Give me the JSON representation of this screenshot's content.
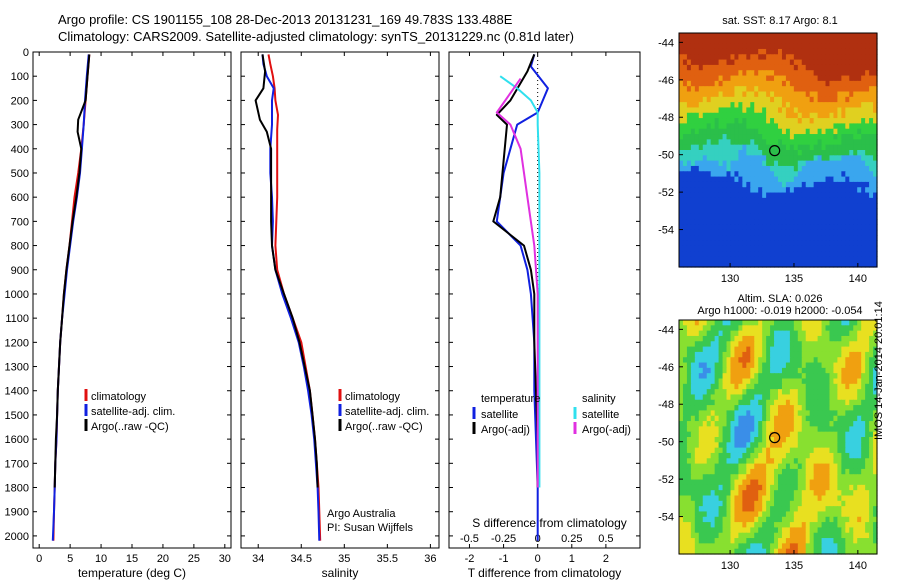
{
  "header": {
    "line1": "Argo profile: CS 1901155_108 28-Dec-2013 20131231_169 49.783S 133.488E",
    "line2": "Climatology: CARS2009. Satellite-adjusted climatology: synTS_20131229.nc (0.81d later)"
  },
  "colors": {
    "climatology": "#e01010",
    "satellite": "#1020e0",
    "argo": "#000000",
    "sat_salinity": "#30e0ee",
    "argo_salinity": "#e030e0"
  },
  "chart_data": [
    {
      "type": "line",
      "panel": "temperature",
      "xlabel": "temperature (deg C)",
      "ylabel": "",
      "xlim": [
        -1,
        31
      ],
      "ylim": [
        2050,
        0
      ],
      "xticks": [
        0,
        5,
        10,
        15,
        20,
        25,
        30
      ],
      "yticks": [
        0,
        100,
        200,
        300,
        400,
        500,
        600,
        700,
        800,
        900,
        1000,
        1100,
        1200,
        1300,
        1400,
        1500,
        1600,
        1700,
        1800,
        1900,
        2000
      ],
      "legend": [
        "climatology",
        "satellite-adj. clim.",
        "Argo(..raw -QC)"
      ],
      "series": [
        {
          "name": "climatology",
          "color": "#e01010",
          "points": [
            [
              8.1,
              10
            ],
            [
              7.8,
              100
            ],
            [
              7.5,
              200
            ],
            [
              7.2,
              300
            ],
            [
              6.8,
              400
            ],
            [
              6.3,
              500
            ],
            [
              5.7,
              600
            ],
            [
              5.3,
              700
            ],
            [
              4.9,
              800
            ],
            [
              4.4,
              900
            ],
            [
              4.0,
              1000
            ],
            [
              3.7,
              1100
            ],
            [
              3.4,
              1200
            ],
            [
              3.2,
              1300
            ],
            [
              3.0,
              1400
            ],
            [
              2.9,
              1500
            ],
            [
              2.8,
              1600
            ],
            [
              2.6,
              1700
            ],
            [
              2.5,
              1800
            ],
            [
              2.4,
              1900
            ],
            [
              2.3,
              2020
            ]
          ]
        },
        {
          "name": "satellite-adj. clim.",
          "color": "#1020e0",
          "points": [
            [
              8.0,
              10
            ],
            [
              7.7,
              100
            ],
            [
              7.4,
              200
            ],
            [
              7.2,
              300
            ],
            [
              6.9,
              400
            ],
            [
              6.6,
              500
            ],
            [
              6.1,
              600
            ],
            [
              5.5,
              700
            ],
            [
              5.0,
              800
            ],
            [
              4.5,
              900
            ],
            [
              4.1,
              1000
            ],
            [
              3.7,
              1100
            ],
            [
              3.4,
              1200
            ],
            [
              3.2,
              1300
            ],
            [
              3.0,
              1400
            ],
            [
              2.9,
              1500
            ],
            [
              2.8,
              1600
            ],
            [
              2.6,
              1700
            ],
            [
              2.5,
              1800
            ],
            [
              2.4,
              1900
            ],
            [
              2.2,
              2020
            ]
          ]
        },
        {
          "name": "Argo(..raw -QC)",
          "color": "#000000",
          "points": [
            [
              8.1,
              10
            ],
            [
              7.8,
              100
            ],
            [
              7.5,
              200
            ],
            [
              6.3,
              280
            ],
            [
              6.2,
              330
            ],
            [
              6.8,
              400
            ],
            [
              6.5,
              500
            ],
            [
              6.0,
              600
            ],
            [
              5.4,
              700
            ],
            [
              4.9,
              800
            ],
            [
              4.4,
              900
            ],
            [
              4.0,
              1000
            ],
            [
              3.7,
              1100
            ],
            [
              3.4,
              1200
            ],
            [
              3.2,
              1300
            ],
            [
              3.0,
              1400
            ],
            [
              2.9,
              1500
            ],
            [
              2.7,
              1600
            ],
            [
              2.6,
              1700
            ],
            [
              2.5,
              1800
            ]
          ]
        }
      ]
    },
    {
      "type": "line",
      "panel": "salinity",
      "xlabel": "salinity",
      "ylabel": "",
      "xlim": [
        33.8,
        36.1
      ],
      "ylim": [
        2050,
        0
      ],
      "xticks": [
        34,
        34.5,
        35,
        35.5,
        36
      ],
      "xticklabels": [
        "34",
        "34.5",
        "35",
        "35.5",
        "36"
      ],
      "legend": [
        "climatology",
        "satellite-adj. clim.",
        "Argo(..raw -QC)"
      ],
      "annotations": [
        "Argo Australia",
        "PI: Susan Wijffels"
      ],
      "series": [
        {
          "name": "climatology",
          "color": "#e01010",
          "points": [
            [
              34.12,
              10
            ],
            [
              34.14,
              50
            ],
            [
              34.17,
              100
            ],
            [
              34.19,
              150
            ],
            [
              34.2,
              200
            ],
            [
              34.23,
              260
            ],
            [
              34.22,
              320
            ],
            [
              34.22,
              400
            ],
            [
              34.22,
              500
            ],
            [
              34.22,
              600
            ],
            [
              34.21,
              700
            ],
            [
              34.2,
              800
            ],
            [
              34.22,
              900
            ],
            [
              34.3,
              1000
            ],
            [
              34.4,
              1100
            ],
            [
              34.5,
              1200
            ],
            [
              34.55,
              1300
            ],
            [
              34.6,
              1400
            ],
            [
              34.63,
              1500
            ],
            [
              34.66,
              1600
            ],
            [
              34.68,
              1700
            ],
            [
              34.7,
              1800
            ],
            [
              34.71,
              1900
            ],
            [
              34.72,
              2020
            ]
          ]
        },
        {
          "name": "satellite-adj. clim.",
          "color": "#1020e0",
          "points": [
            [
              34.05,
              10
            ],
            [
              34.06,
              50
            ],
            [
              34.1,
              100
            ],
            [
              34.18,
              150
            ],
            [
              34.16,
              200
            ],
            [
              34.16,
              300
            ],
            [
              34.14,
              400
            ],
            [
              34.14,
              500
            ],
            [
              34.16,
              600
            ],
            [
              34.17,
              700
            ],
            [
              34.16,
              800
            ],
            [
              34.2,
              900
            ],
            [
              34.28,
              1000
            ],
            [
              34.38,
              1100
            ],
            [
              34.47,
              1200
            ],
            [
              34.53,
              1300
            ],
            [
              34.58,
              1400
            ],
            [
              34.62,
              1500
            ],
            [
              34.65,
              1600
            ],
            [
              34.67,
              1700
            ],
            [
              34.69,
              1800
            ],
            [
              34.7,
              1900
            ],
            [
              34.71,
              2020
            ]
          ]
        },
        {
          "name": "Argo(..raw -QC)",
          "color": "#000000",
          "points": [
            [
              34.05,
              10
            ],
            [
              34.08,
              80
            ],
            [
              34.06,
              150
            ],
            [
              33.97,
              200
            ],
            [
              34.02,
              280
            ],
            [
              34.1,
              330
            ],
            [
              34.15,
              400
            ],
            [
              34.15,
              500
            ],
            [
              34.15,
              600
            ],
            [
              34.15,
              700
            ],
            [
              34.16,
              800
            ],
            [
              34.2,
              900
            ],
            [
              34.3,
              1000
            ],
            [
              34.4,
              1100
            ],
            [
              34.48,
              1200
            ],
            [
              34.54,
              1300
            ],
            [
              34.6,
              1400
            ],
            [
              34.63,
              1500
            ],
            [
              34.66,
              1600
            ],
            [
              34.68,
              1700
            ],
            [
              34.69,
              1800
            ]
          ]
        }
      ]
    },
    {
      "type": "line",
      "panel": "difference",
      "xlabel": "T difference from climatology",
      "xlabel2": "S difference from climatology",
      "xlim": [
        -2.6,
        3.0
      ],
      "ylim": [
        2050,
        0
      ],
      "xticks": [
        -2,
        -1,
        0,
        1,
        2
      ],
      "xticks2": [
        -0.5,
        -0.25,
        0,
        0.25,
        0.5
      ],
      "xticklabels2": [
        "-0.5",
        "-0.25",
        "0",
        "0.25",
        "0.5"
      ],
      "legend_left": {
        "title": "temperature",
        "items": [
          "satellite",
          "Argo(-adj)"
        ]
      },
      "legend_right": {
        "title": "salinity",
        "items": [
          "satellite",
          "Argo(-adj)"
        ]
      },
      "series": [
        {
          "name": "temperature satellite",
          "color": "#1020e0",
          "points": [
            [
              -0.1,
              10
            ],
            [
              -0.2,
              60
            ],
            [
              0.3,
              150
            ],
            [
              0.0,
              250
            ],
            [
              -0.6,
              300
            ],
            [
              -0.8,
              400
            ],
            [
              -1.0,
              500
            ],
            [
              -1.1,
              600
            ],
            [
              -1.2,
              700
            ],
            [
              -0.5,
              800
            ],
            [
              -0.3,
              900
            ],
            [
              -0.2,
              1000
            ],
            [
              -0.1,
              1200
            ],
            [
              -0.1,
              1400
            ],
            [
              -0.05,
              1600
            ],
            [
              0,
              1800
            ],
            [
              0,
              2020
            ]
          ]
        },
        {
          "name": "temperature Argo(-adj)",
          "color": "#000000",
          "points": [
            [
              -0.1,
              10
            ],
            [
              -0.3,
              80
            ],
            [
              -0.8,
              200
            ],
            [
              -1.2,
              260
            ],
            [
              -0.9,
              300
            ],
            [
              -1.0,
              450
            ],
            [
              -1.1,
              600
            ],
            [
              -1.3,
              700
            ],
            [
              -0.4,
              800
            ],
            [
              -0.2,
              900
            ],
            [
              -0.1,
              1000
            ],
            [
              -0.1,
              1200
            ],
            [
              -0.05,
              1400
            ],
            [
              0,
              1600
            ],
            [
              0,
              1800
            ]
          ]
        },
        {
          "name": "salinity satellite",
          "color": "#30e0ee",
          "points": [
            [
              -1.1,
              100
            ],
            [
              -0.6,
              150
            ],
            [
              -0.2,
              200
            ],
            [
              0,
              250
            ],
            [
              0,
              300
            ],
            [
              0.05,
              500
            ],
            [
              0.05,
              800
            ],
            [
              0.05,
              1000
            ],
            [
              0.05,
              1200
            ],
            [
              0.05,
              1500
            ],
            [
              0.05,
              1800
            ]
          ]
        },
        {
          "name": "salinity Argo(-adj)",
          "color": "#e030e0",
          "points": [
            [
              -0.5,
              110
            ],
            [
              -1.2,
              250
            ],
            [
              -0.8,
              300
            ],
            [
              -0.5,
              400
            ],
            [
              -0.3,
              600
            ],
            [
              -0.1,
              800
            ],
            [
              0,
              1000
            ],
            [
              0,
              1200
            ],
            [
              0,
              1500
            ],
            [
              0,
              1800
            ]
          ]
        }
      ]
    },
    {
      "type": "heatmap",
      "panel": "sst-map",
      "title": "sat. SST: 8.17 Argo: 8.1",
      "xlim": [
        126,
        141.5
      ],
      "ylim": [
        -56,
        -43.5
      ],
      "xticks": [
        130,
        135,
        140
      ],
      "yticks": [
        -44,
        -46,
        -48,
        -50,
        -52,
        -54
      ],
      "marker": {
        "lon": 133.488,
        "lat": -49.783
      }
    },
    {
      "type": "heatmap",
      "panel": "sla-map",
      "title": "Altim. SLA: 0.026",
      "subtitle": "Argo h1000: -0.019 h2000: -0.054",
      "side_label": "IMOS 14-Jan-2014 20:01:14",
      "xlim": [
        126,
        141.5
      ],
      "ylim": [
        -56,
        -43.5
      ],
      "xticks": [
        130,
        135,
        140
      ],
      "yticks": [
        -44,
        -46,
        -48,
        -50,
        -52,
        -54
      ],
      "marker": {
        "lon": 133.488,
        "lat": -49.783
      }
    }
  ]
}
